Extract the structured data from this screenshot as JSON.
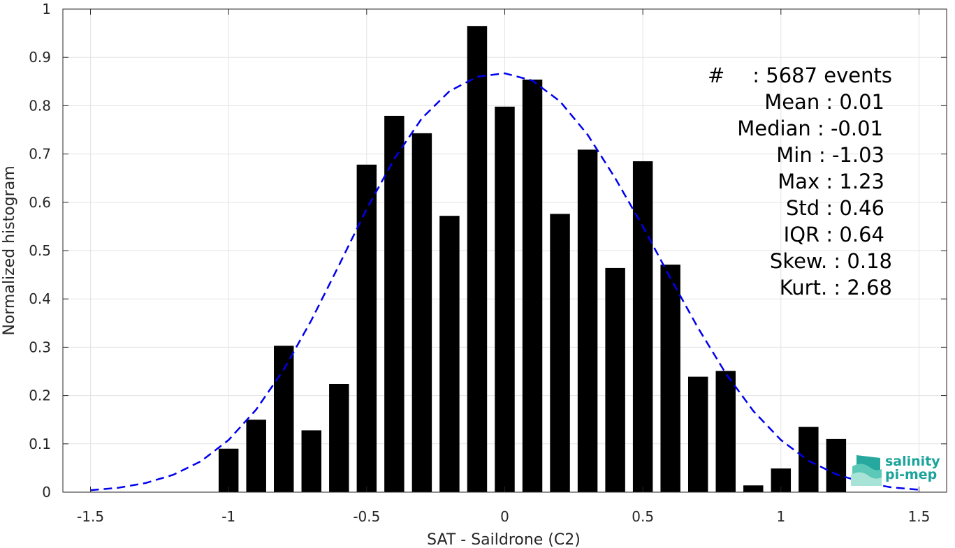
{
  "chart_data": {
    "type": "bar",
    "xlabel": "SAT - Saildrone (C2)",
    "ylabel": "Normalized histogram",
    "xlim": [
      -1.6,
      1.6
    ],
    "ylim": [
      0,
      1
    ],
    "grid": true,
    "x_ticks": [
      -1.5,
      -1,
      -0.5,
      0,
      0.5,
      1,
      1.5
    ],
    "x_tick_labels": [
      "-1.5",
      "-1",
      "-0.5",
      "0",
      "0.5",
      "1",
      "1.5"
    ],
    "y_ticks": [
      0,
      0.1,
      0.2,
      0.3,
      0.4,
      0.5,
      0.6,
      0.7,
      0.8,
      0.9,
      1
    ],
    "y_tick_labels": [
      "0",
      "0.1",
      "0.2",
      "0.3",
      "0.4",
      "0.5",
      "0.6",
      "0.7",
      "0.8",
      "0.9",
      "1"
    ],
    "bar_color": "#000000",
    "bars": {
      "x": [
        -1.0,
        -0.9,
        -0.8,
        -0.7,
        -0.6,
        -0.5,
        -0.4,
        -0.3,
        -0.2,
        -0.1,
        0.0,
        0.1,
        0.2,
        0.3,
        0.4,
        0.5,
        0.6,
        0.7,
        0.8,
        0.9,
        1.0,
        1.1,
        1.2
      ],
      "values": [
        0.09,
        0.15,
        0.303,
        0.128,
        0.224,
        0.678,
        0.779,
        0.743,
        0.572,
        0.965,
        0.798,
        0.854,
        0.576,
        0.709,
        0.464,
        0.685,
        0.471,
        0.239,
        0.251,
        0.014,
        0.049,
        0.135,
        0.11
      ]
    },
    "fit_curve": {
      "style": "dashed",
      "color": "#0000ee",
      "x": [
        -1.5,
        -1.4,
        -1.3,
        -1.2,
        -1.1,
        -1.0,
        -0.9,
        -0.8,
        -0.7,
        -0.6,
        -0.5,
        -0.4,
        -0.3,
        -0.2,
        -0.1,
        0.0,
        0.1,
        0.2,
        0.3,
        0.4,
        0.5,
        0.6,
        0.7,
        0.8,
        0.9,
        1.0,
        1.1,
        1.2,
        1.3,
        1.4,
        1.5
      ],
      "y": [
        0.004,
        0.009,
        0.019,
        0.036,
        0.064,
        0.108,
        0.171,
        0.254,
        0.356,
        0.47,
        0.586,
        0.69,
        0.774,
        0.83,
        0.86,
        0.867,
        0.852,
        0.809,
        0.74,
        0.65,
        0.55,
        0.443,
        0.34,
        0.246,
        0.168,
        0.108,
        0.065,
        0.037,
        0.02,
        0.01,
        0.005
      ]
    }
  },
  "stats": [
    {
      "label": "#",
      "value": "5687 events"
    },
    {
      "label": "Mean",
      "value": "0.01"
    },
    {
      "label": "Median",
      "value": "-0.01"
    },
    {
      "label": "Min",
      "value": "-1.03"
    },
    {
      "label": "Max",
      "value": "1.23"
    },
    {
      "label": "Std",
      "value": "0.46"
    },
    {
      "label": "IQR",
      "value": "0.64"
    },
    {
      "label": "Skew.",
      "value": "0.18"
    },
    {
      "label": "Kurt.",
      "value": "2.68"
    }
  ],
  "logo": {
    "line1": "salinity",
    "line2": "pi-mep",
    "color": "#1aa39a"
  }
}
